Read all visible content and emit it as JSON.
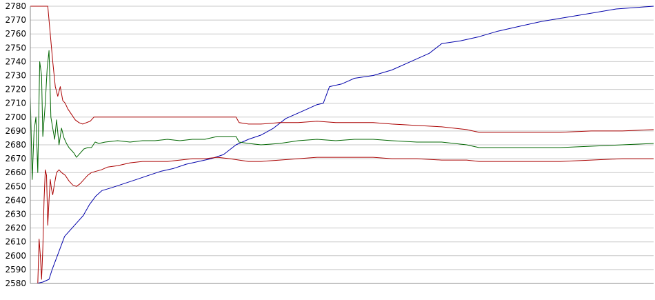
{
  "chart_data": {
    "type": "line",
    "title": "",
    "xlabel": "",
    "ylabel": "",
    "ylim": [
      2580,
      2780
    ],
    "xlim": [
      0,
      1000
    ],
    "y_ticks": [
      "2580",
      "2590",
      "2600",
      "2610",
      "2620",
      "2630",
      "2640",
      "2650",
      "2660",
      "2670",
      "2680",
      "2690",
      "2700",
      "2710",
      "2720",
      "2730",
      "2740",
      "2750",
      "2760",
      "2770",
      "2780"
    ],
    "grid": true,
    "legend": "none",
    "series": [
      {
        "color": "#0000aa",
        "points": [
          [
            0,
            2580
          ],
          [
            10,
            2580
          ],
          [
            20,
            2581
          ],
          [
            30,
            2583
          ],
          [
            35,
            2590
          ],
          [
            45,
            2602
          ],
          [
            55,
            2614
          ],
          [
            65,
            2619
          ],
          [
            75,
            2624
          ],
          [
            85,
            2629
          ],
          [
            95,
            2637
          ],
          [
            105,
            2643
          ],
          [
            115,
            2647
          ],
          [
            130,
            2649
          ],
          [
            150,
            2652
          ],
          [
            170,
            2655
          ],
          [
            190,
            2658
          ],
          [
            210,
            2661
          ],
          [
            230,
            2663
          ],
          [
            250,
            2666
          ],
          [
            270,
            2668
          ],
          [
            290,
            2670
          ],
          [
            310,
            2673
          ],
          [
            330,
            2680
          ],
          [
            350,
            2684
          ],
          [
            370,
            2687
          ],
          [
            390,
            2692
          ],
          [
            410,
            2699
          ],
          [
            440,
            2705
          ],
          [
            460,
            2709
          ],
          [
            470,
            2710
          ],
          [
            480,
            2722
          ],
          [
            500,
            2724
          ],
          [
            520,
            2728
          ],
          [
            550,
            2730
          ],
          [
            580,
            2734
          ],
          [
            610,
            2740
          ],
          [
            640,
            2746
          ],
          [
            660,
            2753
          ],
          [
            690,
            2755
          ],
          [
            720,
            2758
          ],
          [
            750,
            2762
          ],
          [
            780,
            2765
          ],
          [
            820,
            2769
          ],
          [
            860,
            2772
          ],
          [
            900,
            2775
          ],
          [
            940,
            2778
          ],
          [
            1000,
            2780
          ]
        ]
      },
      {
        "color": "#006600",
        "points": [
          [
            0,
            2715
          ],
          [
            3,
            2655
          ],
          [
            6,
            2690
          ],
          [
            9,
            2700
          ],
          [
            12,
            2660
          ],
          [
            15,
            2740
          ],
          [
            18,
            2730
          ],
          [
            20,
            2686
          ],
          [
            24,
            2710
          ],
          [
            27,
            2735
          ],
          [
            30,
            2748
          ],
          [
            33,
            2700
          ],
          [
            36,
            2692
          ],
          [
            39,
            2684
          ],
          [
            42,
            2698
          ],
          [
            46,
            2680
          ],
          [
            50,
            2692
          ],
          [
            54,
            2685
          ],
          [
            58,
            2681
          ],
          [
            62,
            2678
          ],
          [
            66,
            2676
          ],
          [
            70,
            2674
          ],
          [
            74,
            2671
          ],
          [
            80,
            2674
          ],
          [
            86,
            2677
          ],
          [
            92,
            2678
          ],
          [
            98,
            2678
          ],
          [
            104,
            2682
          ],
          [
            110,
            2681
          ],
          [
            120,
            2682
          ],
          [
            140,
            2683
          ],
          [
            160,
            2682
          ],
          [
            180,
            2683
          ],
          [
            200,
            2683
          ],
          [
            220,
            2684
          ],
          [
            240,
            2683
          ],
          [
            260,
            2684
          ],
          [
            280,
            2684
          ],
          [
            300,
            2686
          ],
          [
            320,
            2686
          ],
          [
            330,
            2686
          ],
          [
            335,
            2682
          ],
          [
            350,
            2681
          ],
          [
            370,
            2680
          ],
          [
            400,
            2681
          ],
          [
            430,
            2683
          ],
          [
            460,
            2684
          ],
          [
            490,
            2683
          ],
          [
            520,
            2684
          ],
          [
            550,
            2684
          ],
          [
            580,
            2683
          ],
          [
            620,
            2682
          ],
          [
            660,
            2682
          ],
          [
            700,
            2680
          ],
          [
            720,
            2678
          ],
          [
            760,
            2678
          ],
          [
            800,
            2678
          ],
          [
            850,
            2678
          ],
          [
            900,
            2679
          ],
          [
            950,
            2680
          ],
          [
            1000,
            2681
          ]
        ]
      },
      {
        "color": "#aa0000",
        "points": [
          [
            0,
            2780
          ],
          [
            28,
            2780
          ],
          [
            32,
            2760
          ],
          [
            36,
            2740
          ],
          [
            40,
            2722
          ],
          [
            44,
            2715
          ],
          [
            48,
            2722
          ],
          [
            52,
            2712
          ],
          [
            56,
            2710
          ],
          [
            60,
            2706
          ],
          [
            66,
            2702
          ],
          [
            72,
            2698
          ],
          [
            78,
            2696
          ],
          [
            84,
            2695
          ],
          [
            90,
            2696
          ],
          [
            96,
            2697
          ],
          [
            102,
            2700
          ],
          [
            110,
            2700
          ],
          [
            130,
            2700
          ],
          [
            150,
            2700
          ],
          [
            170,
            2700
          ],
          [
            190,
            2700
          ],
          [
            210,
            2700
          ],
          [
            230,
            2700
          ],
          [
            250,
            2700
          ],
          [
            270,
            2700
          ],
          [
            290,
            2700
          ],
          [
            310,
            2700
          ],
          [
            330,
            2700
          ],
          [
            335,
            2696
          ],
          [
            350,
            2695
          ],
          [
            370,
            2695
          ],
          [
            400,
            2696
          ],
          [
            430,
            2696
          ],
          [
            460,
            2697
          ],
          [
            490,
            2696
          ],
          [
            520,
            2696
          ],
          [
            550,
            2696
          ],
          [
            580,
            2695
          ],
          [
            620,
            2694
          ],
          [
            660,
            2693
          ],
          [
            700,
            2691
          ],
          [
            720,
            2689
          ],
          [
            760,
            2689
          ],
          [
            800,
            2689
          ],
          [
            850,
            2689
          ],
          [
            900,
            2690
          ],
          [
            950,
            2690
          ],
          [
            1000,
            2691
          ]
        ]
      },
      {
        "color": "#aa0000",
        "points": [
          [
            0,
            2580
          ],
          [
            12,
            2580
          ],
          [
            14,
            2612
          ],
          [
            16,
            2600
          ],
          [
            18,
            2583
          ],
          [
            20,
            2605
          ],
          [
            22,
            2640
          ],
          [
            24,
            2662
          ],
          [
            26,
            2658
          ],
          [
            28,
            2622
          ],
          [
            30,
            2640
          ],
          [
            32,
            2655
          ],
          [
            34,
            2648
          ],
          [
            36,
            2644
          ],
          [
            38,
            2650
          ],
          [
            42,
            2660
          ],
          [
            46,
            2662
          ],
          [
            50,
            2660
          ],
          [
            56,
            2658
          ],
          [
            62,
            2654
          ],
          [
            68,
            2651
          ],
          [
            74,
            2650
          ],
          [
            80,
            2652
          ],
          [
            86,
            2655
          ],
          [
            92,
            2658
          ],
          [
            98,
            2660
          ],
          [
            106,
            2661
          ],
          [
            114,
            2662
          ],
          [
            124,
            2664
          ],
          [
            140,
            2665
          ],
          [
            160,
            2667
          ],
          [
            180,
            2668
          ],
          [
            200,
            2668
          ],
          [
            220,
            2668
          ],
          [
            240,
            2669
          ],
          [
            260,
            2670
          ],
          [
            280,
            2670
          ],
          [
            300,
            2671
          ],
          [
            320,
            2670
          ],
          [
            335,
            2669
          ],
          [
            350,
            2668
          ],
          [
            370,
            2668
          ],
          [
            400,
            2669
          ],
          [
            430,
            2670
          ],
          [
            460,
            2671
          ],
          [
            490,
            2671
          ],
          [
            520,
            2671
          ],
          [
            550,
            2671
          ],
          [
            580,
            2670
          ],
          [
            620,
            2670
          ],
          [
            660,
            2669
          ],
          [
            700,
            2669
          ],
          [
            720,
            2668
          ],
          [
            760,
            2668
          ],
          [
            800,
            2668
          ],
          [
            850,
            2668
          ],
          [
            900,
            2669
          ],
          [
            950,
            2670
          ],
          [
            1000,
            2670
          ]
        ]
      }
    ]
  }
}
